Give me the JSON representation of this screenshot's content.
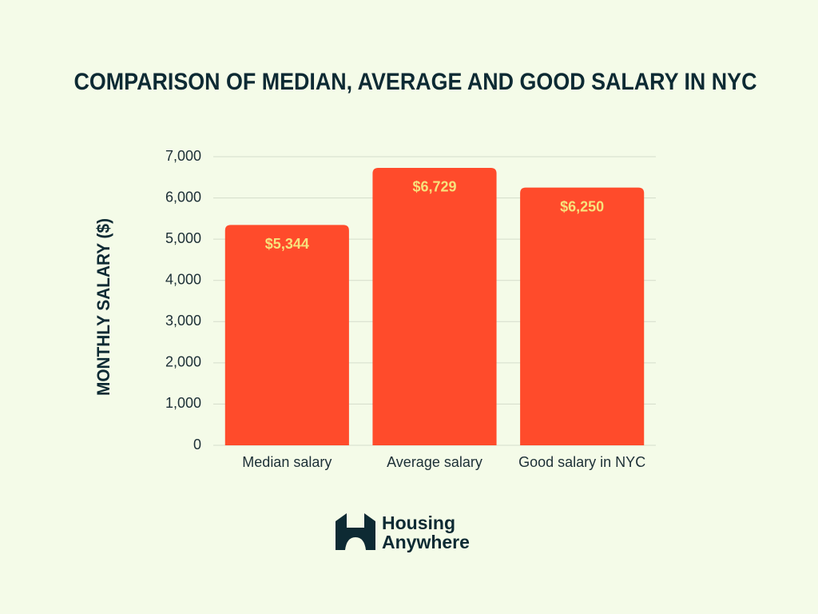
{
  "chart_data": {
    "type": "bar",
    "title": "COMPARISON OF MEDIAN, AVERAGE AND GOOD SALARY IN NYC",
    "y_label": "MONTHLY SALARY ($)",
    "categories": [
      "Median salary",
      "Average salary",
      "Good salary in NYC"
    ],
    "values": [
      5344,
      6729,
      6250
    ],
    "value_labels": [
      "$5,344",
      "$6,729",
      "$6,250"
    ],
    "color": "#ff4b2b",
    "ylim": [
      0,
      7000
    ],
    "yticks": [
      0,
      {
        "value": 1000,
        "label": "1,000"
      },
      {
        "value": 2000,
        "label": "2,000"
      },
      {
        "value": 3000,
        "label": "3,000"
      },
      {
        "value": 4000,
        "label": "4,000"
      },
      {
        "value": 5000,
        "label": "5,000"
      },
      {
        "value": 6000,
        "label": "6,000"
      },
      {
        "value": 7000,
        "label": "7,000"
      }
    ],
    "grid": true
  },
  "brand": [
    "Housing",
    "Anywhere"
  ]
}
